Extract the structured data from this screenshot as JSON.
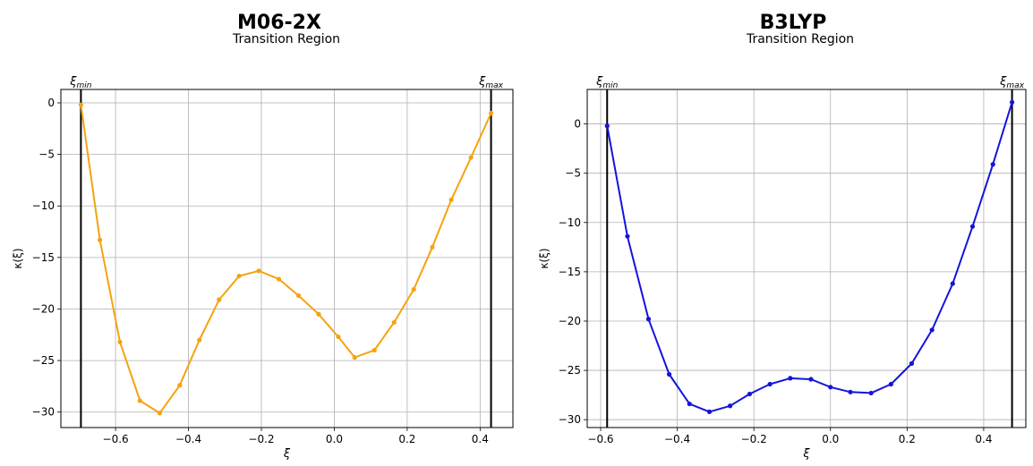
{
  "chart_data": [
    {
      "type": "line",
      "title": "M06-2X",
      "subtitle": "Transition Region",
      "xlabel": "ξ",
      "ylabel": "κ(ξ)",
      "xlim": [
        -0.75,
        0.49
      ],
      "ylim": [
        -31.5,
        1.3
      ],
      "xticks": [
        -0.6,
        -0.4,
        -0.2,
        0.0,
        0.2,
        0.4
      ],
      "xtick_labels": [
        "−0.6",
        "−0.4",
        "−0.2",
        "0.0",
        "0.2",
        "0.4"
      ],
      "yticks": [
        0,
        -5,
        -10,
        -15,
        -20,
        -25,
        -30
      ],
      "ytick_labels": [
        "0",
        "−5",
        "−10",
        "−15",
        "−20",
        "−25",
        "−30"
      ],
      "grid": true,
      "vlines": [
        {
          "label": "ξ",
          "sub": "min",
          "x": -0.695
        },
        {
          "label": "ξ",
          "sub": "max",
          "x": 0.43
        }
      ],
      "series": [
        {
          "color": "#f5a30f",
          "x": [
            -0.695,
            -0.643,
            -0.588,
            -0.533,
            -0.479,
            -0.424,
            -0.37,
            -0.316,
            -0.261,
            -0.207,
            -0.152,
            -0.098,
            -0.043,
            0.011,
            0.056,
            0.11,
            0.164,
            0.218,
            0.269,
            0.321,
            0.375,
            0.43
          ],
          "y": [
            -0.2,
            -13.3,
            -23.2,
            -28.9,
            -30.1,
            -27.4,
            -23.0,
            -19.1,
            -16.8,
            -16.3,
            -17.1,
            -18.7,
            -20.5,
            -22.7,
            -24.7,
            -24.0,
            -21.3,
            -18.1,
            -14.0,
            -9.4,
            -5.3,
            -1.0
          ]
        }
      ]
    },
    {
      "type": "line",
      "title": "B3LYP",
      "subtitle": "Transition Region",
      "xlabel": "ξ",
      "ylabel": "κ(ξ)",
      "xlim": [
        -0.635,
        0.51
      ],
      "ylim": [
        -30.8,
        3.5
      ],
      "xticks": [
        -0.6,
        -0.4,
        -0.2,
        0.0,
        0.2,
        0.4
      ],
      "xtick_labels": [
        "−0.6",
        "−0.4",
        "−0.2",
        "0.0",
        "0.2",
        "0.4"
      ],
      "yticks": [
        0,
        -5,
        -10,
        -15,
        -20,
        -25,
        -30
      ],
      "ytick_labels": [
        "0",
        "−5",
        "−10",
        "−15",
        "−20",
        "−25",
        "−30"
      ],
      "grid": true,
      "vlines": [
        {
          "label": "ξ",
          "sub": "min",
          "x": -0.583
        },
        {
          "label": "ξ",
          "sub": "max",
          "x": 0.474
        }
      ],
      "series": [
        {
          "color": "#1414dc",
          "x": [
            -0.583,
            -0.53,
            -0.475,
            -0.421,
            -0.368,
            -0.316,
            -0.262,
            -0.211,
            -0.158,
            -0.105,
            -0.051,
            0.0,
            0.052,
            0.106,
            0.158,
            0.212,
            0.265,
            0.319,
            0.371,
            0.424,
            0.474
          ],
          "y": [
            -0.2,
            -11.4,
            -19.8,
            -25.4,
            -28.4,
            -29.2,
            -28.6,
            -27.4,
            -26.4,
            -25.8,
            -25.9,
            -26.7,
            -27.2,
            -27.3,
            -26.4,
            -24.3,
            -20.9,
            -16.2,
            -10.4,
            -4.1,
            2.2
          ]
        }
      ]
    }
  ]
}
